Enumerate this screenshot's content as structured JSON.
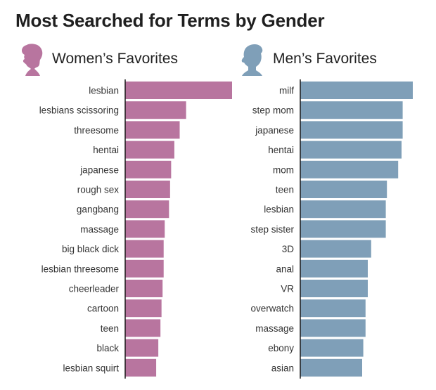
{
  "title": "Most Searched for Terms by Gender",
  "colors": {
    "women": "#b8759f",
    "men": "#7f9fb8",
    "axis": "#1a1a1a"
  },
  "women": {
    "heading": "Women’s Favorites",
    "icon": "woman-silhouette-icon"
  },
  "men": {
    "heading": "Men’s Favorites",
    "icon": "man-silhouette-icon"
  },
  "chart_data": [
    {
      "type": "bar",
      "orientation": "horizontal",
      "title": "Women’s Favorites",
      "categories": [
        "lesbian",
        "lesbians scissoring",
        "threesome",
        "hentai",
        "japanese",
        "rough sex",
        "gangbang",
        "massage",
        "big black dick",
        "lesbian threesome",
        "cheerleader",
        "cartoon",
        "teen",
        "black",
        "lesbian squirt"
      ],
      "values": [
        100,
        57,
        51,
        46,
        43,
        42,
        41,
        37,
        36,
        36,
        35,
        34,
        33,
        31,
        29
      ],
      "xlim": [
        0,
        100
      ],
      "grid": false
    },
    {
      "type": "bar",
      "orientation": "horizontal",
      "title": "Men’s Favorites",
      "categories": [
        "milf",
        "step mom",
        "japanese",
        "hentai",
        "mom",
        "teen",
        "lesbian",
        "step sister",
        "3D",
        "anal",
        "VR",
        "overwatch",
        "massage",
        "ebony",
        "asian"
      ],
      "values": [
        100,
        91,
        91,
        90,
        87,
        77,
        76,
        76,
        63,
        60,
        60,
        58,
        58,
        56,
        55
      ],
      "xlim": [
        0,
        100
      ],
      "grid": false
    }
  ]
}
